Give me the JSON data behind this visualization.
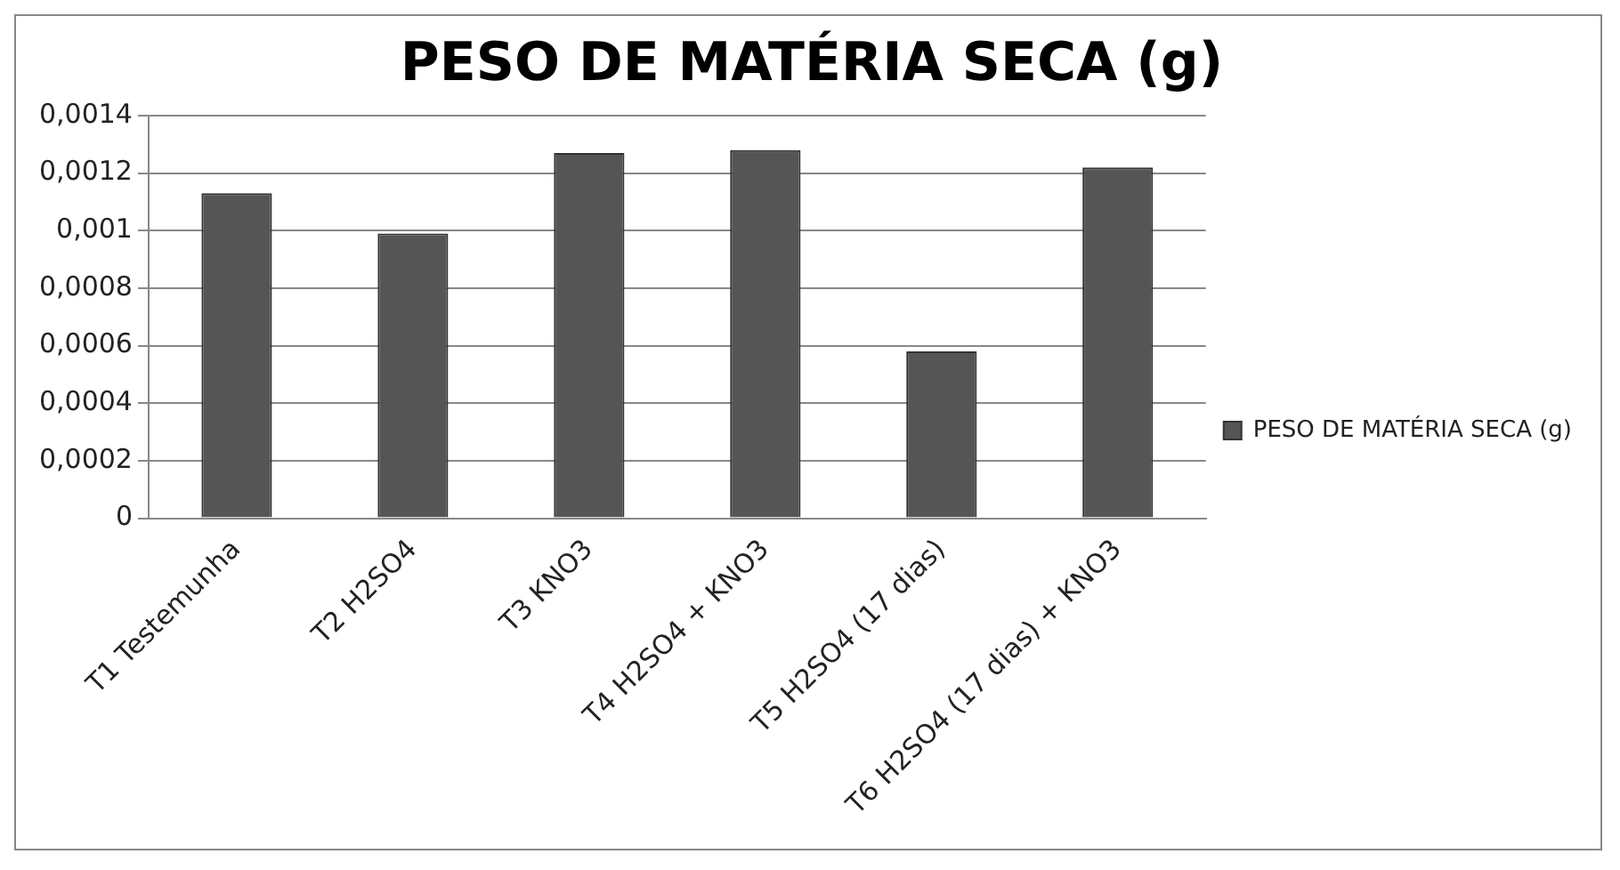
{
  "chart_data": {
    "type": "bar",
    "title": "PESO DE MATÉRIA SECA (g)",
    "categories": [
      "T1 Testemunha",
      "T2 H2SO4",
      "T3 KNO3",
      "T4 H2SO4 + KNO3",
      "T5 H2SO4 (17 dias)",
      "T6 H2SO4 (17 dias) + KNO3"
    ],
    "series": [
      {
        "name": "PESO DE MATÉRIA SECA (g)",
        "color": "#555555",
        "values": [
          0.00113,
          0.00099,
          0.00127,
          0.00128,
          0.00058,
          0.00122
        ]
      }
    ],
    "ylim": [
      0,
      0.0014
    ],
    "yticks": [
      {
        "value": 0,
        "label": "0"
      },
      {
        "value": 0.0002,
        "label": "0,0002"
      },
      {
        "value": 0.0004,
        "label": "0,0004"
      },
      {
        "value": 0.0006,
        "label": "0,0006"
      },
      {
        "value": 0.0008,
        "label": "0,0008"
      },
      {
        "value": 0.001,
        "label": "0,001"
      },
      {
        "value": 0.0012,
        "label": "0,0012"
      },
      {
        "value": 0.0014,
        "label": "0,0014"
      }
    ],
    "grid": "y",
    "legend": "right"
  }
}
